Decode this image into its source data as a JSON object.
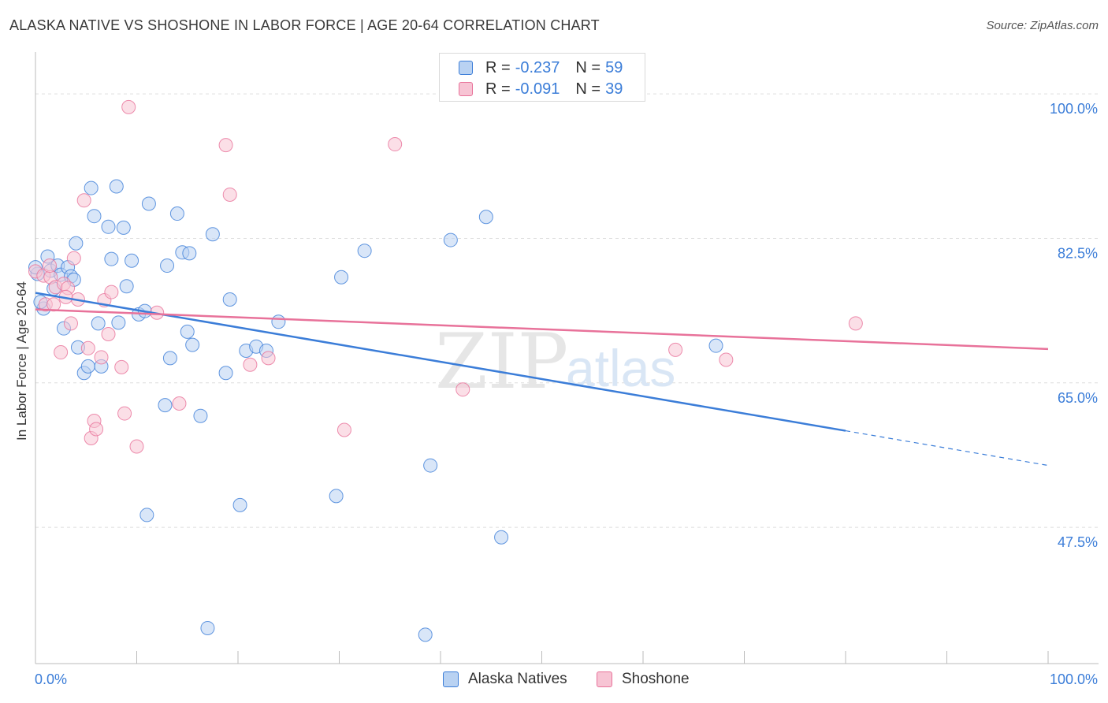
{
  "title": "ALASKA NATIVE VS SHOSHONE IN LABOR FORCE | AGE 20-64 CORRELATION CHART",
  "source": "Source: ZipAtlas.com",
  "legend_top": {
    "rows": [
      {
        "r_label": "R =",
        "r_value": "-0.237",
        "n_label": "N =",
        "n_value": "59"
      },
      {
        "r_label": "R =",
        "r_value": "-0.091",
        "n_label": "N =",
        "n_value": "39"
      }
    ]
  },
  "axis": {
    "ylabel": "In Labor Force | Age 20-64",
    "x_min_label": "0.0%",
    "x_max_label": "100.0%"
  },
  "colors": {
    "alaska": "#3b7dd8",
    "shoshone": "#e8729a",
    "alaska_fill": "#b9d2f2",
    "shoshone_fill": "#f7c4d4",
    "tick_label": "#3b7dd8"
  },
  "chart_data": {
    "type": "scatter",
    "title": "ALASKA NATIVE VS SHOSHONE IN LABOR FORCE | AGE 20-64 CORRELATION CHART",
    "xlabel": "",
    "ylabel": "In Labor Force | Age 20-64",
    "xlim": [
      0,
      100
    ],
    "ylim": [
      31,
      104.5
    ],
    "y_ticks": [
      47.5,
      65.0,
      82.5,
      100.0
    ],
    "y_tick_labels": [
      "47.5%",
      "65.0%",
      "82.5%",
      "100.0%"
    ],
    "x_tick_labels": [
      "0.0%",
      "100.0%"
    ],
    "grid": true,
    "legend_position": "top-center",
    "series": [
      {
        "name": "Alaska Natives",
        "r": -0.237,
        "n": 59,
        "trend": {
          "x0": 0,
          "y0": 75.9,
          "x1": 80,
          "y1": 59.2,
          "dashed_to_x": 100,
          "dashed_to_y": 55.0
        },
        "points": [
          [
            0.2,
            78.2
          ],
          [
            0.8,
            74.0
          ],
          [
            0.5,
            74.8
          ],
          [
            1.2,
            80.3
          ],
          [
            1.5,
            78.6
          ],
          [
            1.8,
            76.4
          ],
          [
            2.2,
            79.2
          ],
          [
            2.5,
            78.1
          ],
          [
            2.8,
            71.6
          ],
          [
            3.2,
            79.0
          ],
          [
            3.5,
            77.9
          ],
          [
            3.8,
            77.5
          ],
          [
            4.0,
            81.9
          ],
          [
            4.2,
            69.3
          ],
          [
            4.8,
            66.2
          ],
          [
            5.2,
            67.0
          ],
          [
            5.5,
            88.6
          ],
          [
            5.8,
            85.2
          ],
          [
            6.2,
            72.2
          ],
          [
            6.5,
            67.0
          ],
          [
            7.2,
            83.9
          ],
          [
            7.5,
            80.0
          ],
          [
            8.0,
            88.8
          ],
          [
            8.2,
            72.3
          ],
          [
            8.7,
            83.8
          ],
          [
            9.0,
            76.7
          ],
          [
            9.5,
            79.8
          ],
          [
            10.2,
            73.3
          ],
          [
            10.8,
            73.7
          ],
          [
            11.0,
            49.0
          ],
          [
            11.2,
            86.7
          ],
          [
            12.8,
            62.3
          ],
          [
            13.0,
            79.2
          ],
          [
            13.3,
            68.0
          ],
          [
            14.0,
            85.5
          ],
          [
            14.5,
            80.8
          ],
          [
            15.0,
            71.2
          ],
          [
            15.2,
            80.7
          ],
          [
            15.5,
            69.6
          ],
          [
            16.3,
            61.0
          ],
          [
            17.0,
            35.3
          ],
          [
            17.5,
            83.0
          ],
          [
            18.8,
            66.2
          ],
          [
            19.2,
            75.1
          ],
          [
            20.2,
            50.2
          ],
          [
            20.8,
            68.9
          ],
          [
            21.8,
            69.4
          ],
          [
            22.8,
            68.9
          ],
          [
            24.0,
            72.4
          ],
          [
            29.7,
            51.3
          ],
          [
            30.2,
            77.8
          ],
          [
            32.5,
            81.0
          ],
          [
            38.5,
            34.5
          ],
          [
            39.0,
            55.0
          ],
          [
            41.0,
            82.3
          ],
          [
            44.5,
            85.1
          ],
          [
            46.0,
            46.3
          ],
          [
            67.2,
            69.5
          ],
          [
            0.0,
            79.0
          ]
        ]
      },
      {
        "name": "Shoshone",
        "r": -0.091,
        "n": 39,
        "trend": {
          "x0": 0,
          "y0": 73.9,
          "x1": 100,
          "y1": 69.1
        },
        "points": [
          [
            0.0,
            78.5
          ],
          [
            0.8,
            78.0
          ],
          [
            1.0,
            74.5
          ],
          [
            1.5,
            77.8
          ],
          [
            1.8,
            74.5
          ],
          [
            2.0,
            76.6
          ],
          [
            2.5,
            68.7
          ],
          [
            2.8,
            77.0
          ],
          [
            3.2,
            76.5
          ],
          [
            3.5,
            72.2
          ],
          [
            3.8,
            80.1
          ],
          [
            4.2,
            75.1
          ],
          [
            4.8,
            87.1
          ],
          [
            5.2,
            69.2
          ],
          [
            5.5,
            58.3
          ],
          [
            5.8,
            60.4
          ],
          [
            6.0,
            59.4
          ],
          [
            6.5,
            68.1
          ],
          [
            6.8,
            75.0
          ],
          [
            7.2,
            70.9
          ],
          [
            7.5,
            76.0
          ],
          [
            8.5,
            66.9
          ],
          [
            8.8,
            61.3
          ],
          [
            9.2,
            98.4
          ],
          [
            10.0,
            57.3
          ],
          [
            12.0,
            73.5
          ],
          [
            14.2,
            62.5
          ],
          [
            18.8,
            93.8
          ],
          [
            19.2,
            87.8
          ],
          [
            21.2,
            67.2
          ],
          [
            23.0,
            68.0
          ],
          [
            30.5,
            59.3
          ],
          [
            35.5,
            93.9
          ],
          [
            42.2,
            64.2
          ],
          [
            63.2,
            69.0
          ],
          [
            68.2,
            67.8
          ],
          [
            81.0,
            72.2
          ],
          [
            1.4,
            79.2
          ],
          [
            3.0,
            75.4
          ]
        ]
      }
    ]
  },
  "bottom_legend": [
    {
      "label": "Alaska Natives"
    },
    {
      "label": "Shoshone"
    }
  ],
  "watermark": {
    "part1": "ZIP",
    "part2": "atlas"
  }
}
